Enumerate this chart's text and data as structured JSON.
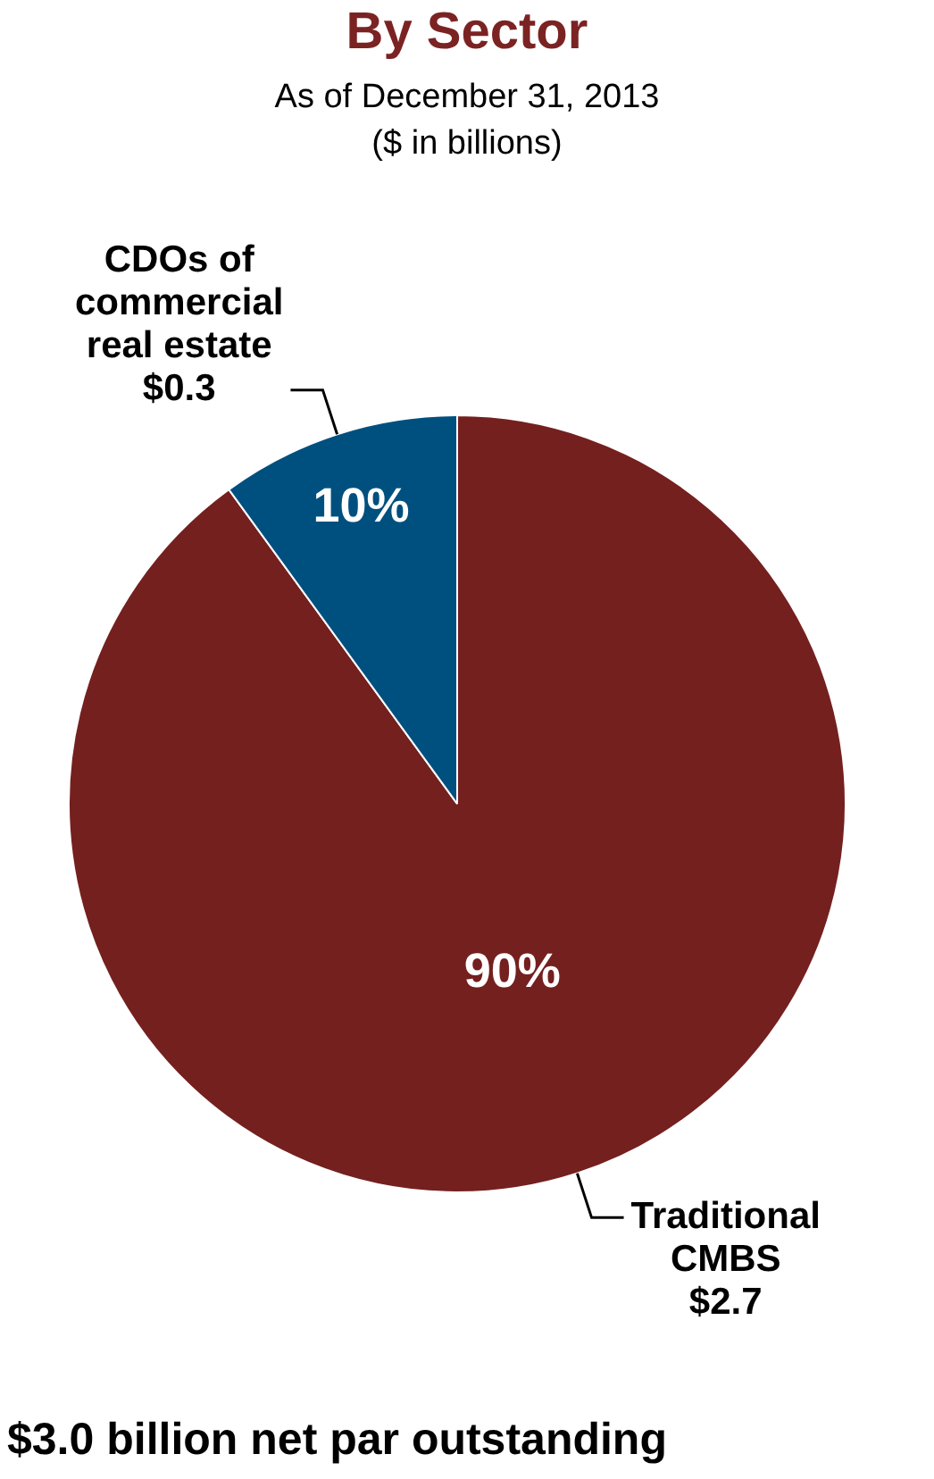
{
  "chart_data": {
    "type": "pie",
    "title": "By Sector",
    "subtitle": "As of December 31, 2013\n($ in billions)",
    "categories": [
      "Traditional CMBS",
      "CDOs of commercial real estate"
    ],
    "values": [
      90,
      10
    ],
    "value_labels": [
      "90%",
      "10%"
    ],
    "colors": [
      "#74201f",
      "#00507f"
    ],
    "annotations": [
      {
        "text": "$2.7",
        "x": "Traditional CMBS"
      },
      {
        "text": "$0.3",
        "x": "CDOs of commercial real estate"
      },
      "$3.0 billion net par outstanding"
    ],
    "legend": false
  }
}
